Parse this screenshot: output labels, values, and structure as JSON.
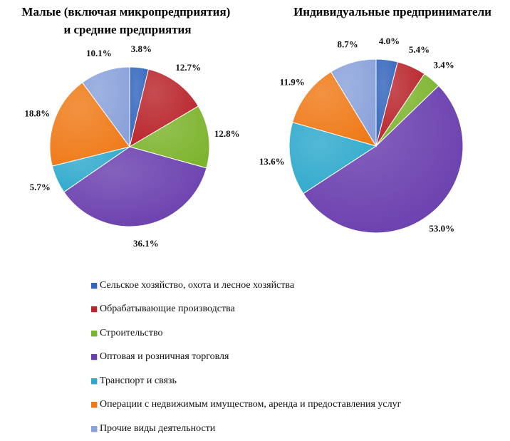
{
  "chart_data": [
    {
      "type": "pie",
      "title": "Малые (включая микропредприятия)\nи средние предприятия",
      "categories": [
        "Сельское хозяйство, охота и лесное хозяйства",
        "Обрабатывающие производства",
        "Строительство",
        "Оптовая и розничная торговля",
        "Транспорт и связь",
        "Операции с недвижимым имуществом, аренда и предоставления услуг",
        "Прочие виды деятельности"
      ],
      "values": [
        3.8,
        12.7,
        12.8,
        36.1,
        5.7,
        18.8,
        10.1
      ],
      "value_labels": [
        "3.8%",
        "12.7%",
        "12.8%",
        "36.1%",
        "5.7%",
        "18.8%",
        "10.1%"
      ]
    },
    {
      "type": "pie",
      "title": "Индивидуальные предприниматели",
      "categories": [
        "Сельское хозяйство, охота и лесное хозяйства",
        "Обрабатывающие производства",
        "Строительство",
        "Оптовая и розничная торговля",
        "Транспорт и связь",
        "Операции с недвижимым имуществом, аренда и предоставления услуг",
        "Прочие виды деятельности"
      ],
      "values": [
        4.0,
        5.4,
        3.4,
        53.0,
        13.6,
        11.9,
        8.7
      ],
      "value_labels": [
        "4.0%",
        "5.4%",
        "3.4%",
        "53.0%",
        "13.6%",
        "11.9%",
        "8.7%"
      ]
    }
  ],
  "legend": {
    "placement": "bottom",
    "items": [
      {
        "label": "Сельское хозяйство, охота и лесное хозяйства",
        "color": "#3466bb"
      },
      {
        "label": "Обрабатывающие производства",
        "color": "#b8252b"
      },
      {
        "label": "Строительство",
        "color": "#7db42e"
      },
      {
        "label": "Оптовая и розничная торговля",
        "color": "#6a3fae"
      },
      {
        "label": "Транспорт и связь",
        "color": "#2ea9cc"
      },
      {
        "label": "Операции с недвижимым имуществом, аренда и предоставления услуг",
        "color": "#ef7a18"
      },
      {
        "label": "Прочие виды деятельности",
        "color": "#8aa2da"
      }
    ]
  }
}
